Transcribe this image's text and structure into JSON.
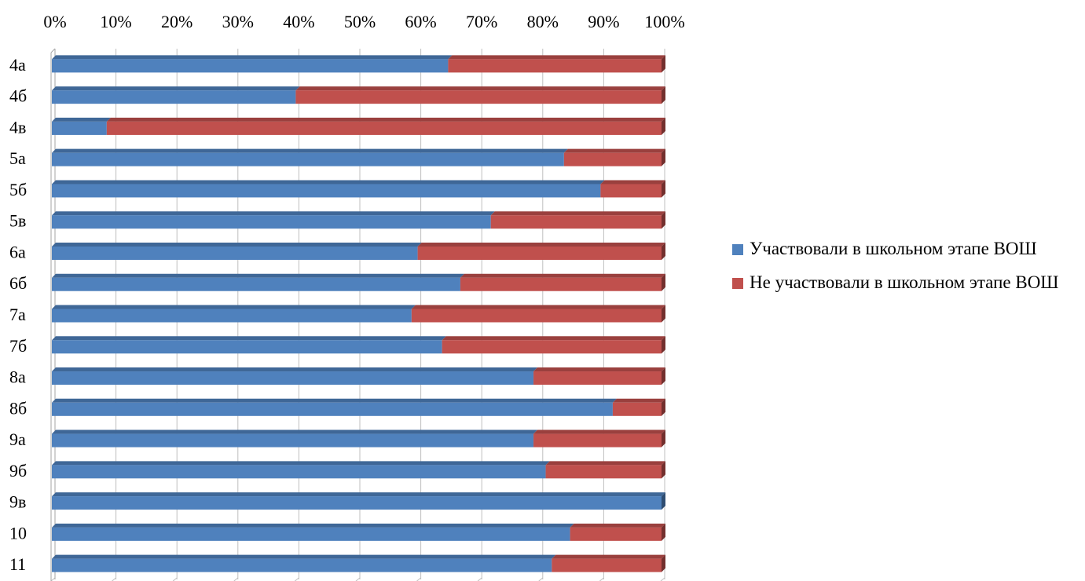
{
  "chart_data": {
    "type": "bar",
    "orientation": "horizontal",
    "stacked": "percent",
    "title": "",
    "xlabel": "",
    "ylabel": "",
    "xlim": [
      0,
      100
    ],
    "x_ticks": [
      "0%",
      "10%",
      "20%",
      "30%",
      "40%",
      "50%",
      "60%",
      "70%",
      "80%",
      "90%",
      "100%"
    ],
    "x_axis_position": "top",
    "grid": true,
    "legend_position": "right",
    "categories": [
      "4а",
      "4б",
      "4в",
      "5а",
      "5б",
      "5в",
      "6а",
      "6б",
      "7а",
      "7б",
      "8а",
      "8б",
      "9а",
      "9б",
      "9в",
      "10",
      "11"
    ],
    "series": [
      {
        "name": "Участвовали в школьном этапе ВОШ",
        "color": "#4F81BD",
        "values": [
          65,
          40,
          9,
          84,
          90,
          72,
          60,
          67,
          59,
          64,
          79,
          92,
          79,
          81,
          100,
          85,
          82
        ]
      },
      {
        "name": "Не участвовали в школьном этапе ВОШ",
        "color": "#C0504D",
        "values": [
          35,
          60,
          91,
          16,
          10,
          28,
          40,
          33,
          41,
          36,
          21,
          8,
          21,
          19,
          0,
          15,
          18
        ]
      }
    ]
  }
}
